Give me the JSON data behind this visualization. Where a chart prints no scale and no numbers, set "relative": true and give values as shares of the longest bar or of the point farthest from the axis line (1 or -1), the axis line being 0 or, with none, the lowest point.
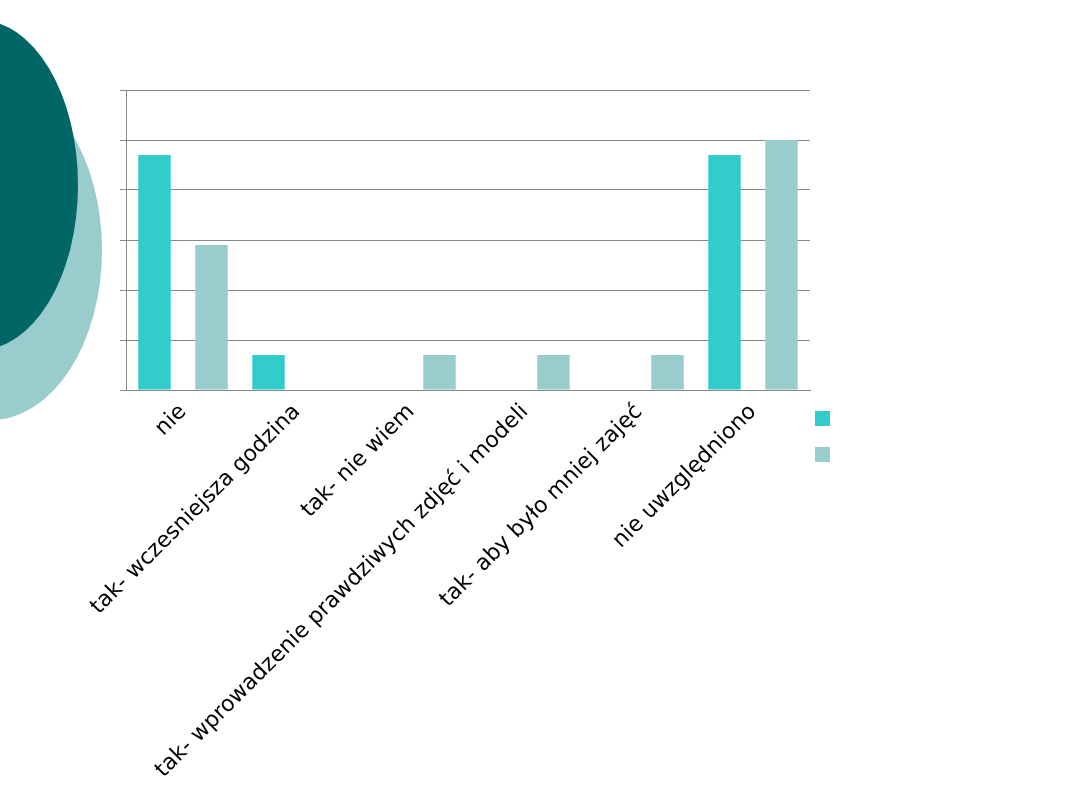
{
  "chart_data": {
    "type": "bar",
    "relative": true,
    "categories": [
      "nie",
      "tak- wczesniejsza godzina",
      "tak- nie wiem",
      "tak- wprowadzenie prawdziwych zdjęć i modeli",
      "tak- aby było mniej zajęć",
      "nie uwzględniono"
    ],
    "series": [
      {
        "color": "#33cccc",
        "values": [
          0.94,
          0.14,
          null,
          null,
          null,
          0.94
        ]
      },
      {
        "color": "#99cccc",
        "values": [
          0.58,
          null,
          0.14,
          0.14,
          0.14,
          1
        ]
      }
    ],
    "grid": "y"
  }
}
